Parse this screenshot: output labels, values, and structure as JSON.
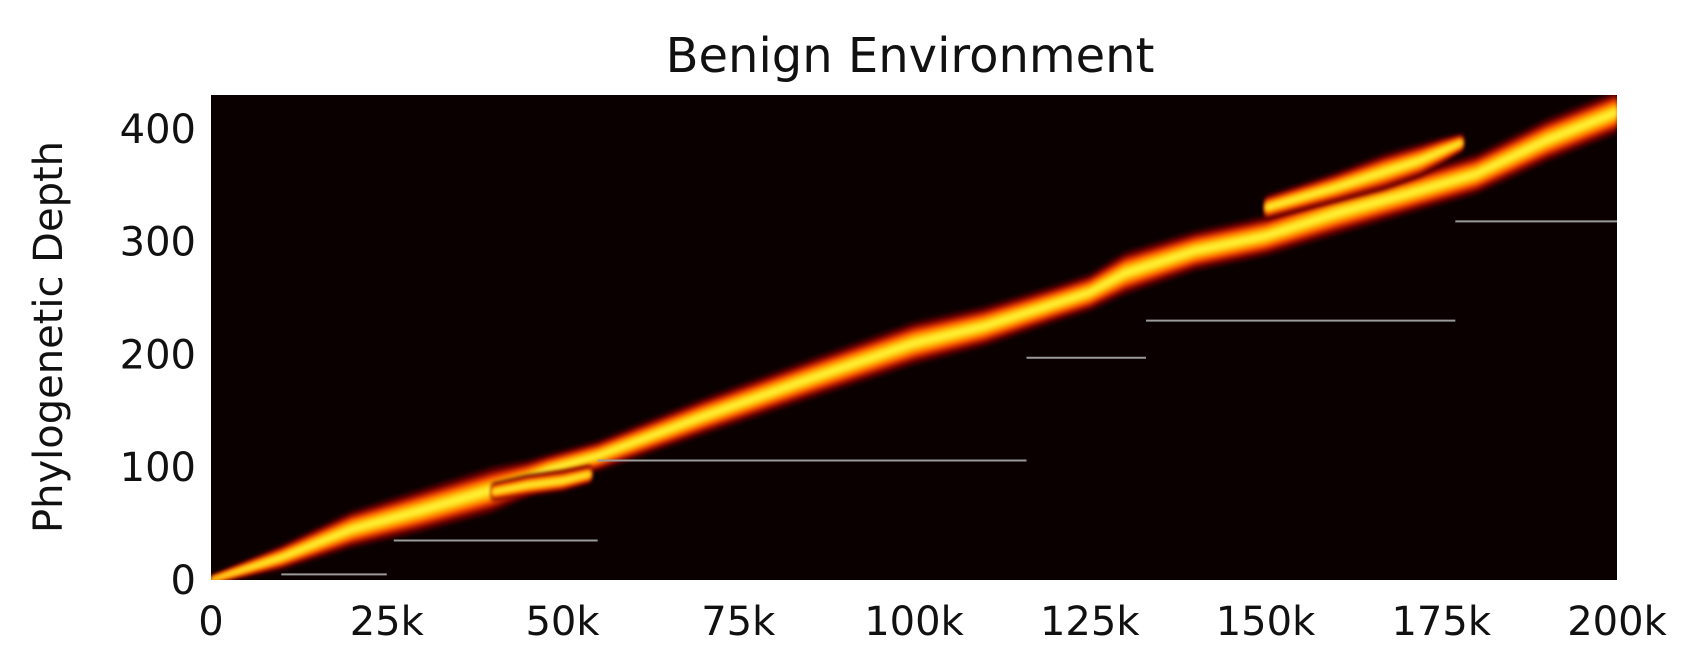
{
  "chart_data": {
    "type": "heatmap",
    "title": "Benign Environment",
    "xlabel": "",
    "ylabel": "Phylogenetic Depth",
    "xlim": [
      0,
      200000
    ],
    "ylim": [
      0,
      430
    ],
    "x_ticks": [
      {
        "value": 0,
        "label": "0"
      },
      {
        "value": 25000,
        "label": "25k"
      },
      {
        "value": 50000,
        "label": "50k"
      },
      {
        "value": 75000,
        "label": "75k"
      },
      {
        "value": 100000,
        "label": "100k"
      },
      {
        "value": 125000,
        "label": "125k"
      },
      {
        "value": 150000,
        "label": "150k"
      },
      {
        "value": 175000,
        "label": "175k"
      },
      {
        "value": 200000,
        "label": "200k"
      }
    ],
    "y_ticks": [
      {
        "value": 0,
        "label": "0"
      },
      {
        "value": 100,
        "label": "100"
      },
      {
        "value": 200,
        "label": "200"
      },
      {
        "value": 300,
        "label": "300"
      },
      {
        "value": 400,
        "label": "400"
      }
    ],
    "background_color": "#0a0000",
    "colormap": [
      "#5a0000",
      "#b81800",
      "#ff5a00",
      "#ffb000",
      "#ffee30"
    ],
    "density_bands": [
      {
        "x": [
          0,
          10000,
          20000,
          30000,
          40000,
          45000,
          48000,
          55000,
          70000,
          85000,
          100000,
          110000,
          120000,
          125000,
          130000,
          140000,
          150000,
          160000,
          170000,
          180000,
          190000,
          200000
        ],
        "y": [
          0,
          20,
          45,
          62,
          80,
          90,
          98,
          110,
          145,
          178,
          210,
          225,
          245,
          255,
          272,
          292,
          305,
          325,
          342,
          360,
          390,
          415
        ],
        "spread": [
          3,
          8,
          12,
          14,
          15,
          12,
          10,
          10,
          12,
          13,
          14,
          13,
          12,
          12,
          14,
          13,
          13,
          14,
          13,
          13,
          14,
          14
        ]
      },
      {
        "x": [
          40000,
          45000,
          50000,
          54000
        ],
        "y": [
          78,
          84,
          88,
          94
        ],
        "spread": [
          6,
          7,
          7,
          6
        ]
      },
      {
        "x": [
          150000,
          160000,
          167000,
          172000,
          175000,
          178000
        ],
        "y": [
          330,
          348,
          362,
          372,
          380,
          388
        ],
        "spread": [
          8,
          10,
          12,
          11,
          9,
          6
        ]
      }
    ],
    "lineage_segments": [
      {
        "x": [
          10000,
          25000
        ],
        "y": 5
      },
      {
        "x": [
          26000,
          55000
        ],
        "y": 35
      },
      {
        "x": [
          55000,
          116000
        ],
        "y": 106
      },
      {
        "x": [
          116000,
          133000
        ],
        "y": 197
      },
      {
        "x": [
          133000,
          177000
        ],
        "y": 230
      },
      {
        "x": [
          177000,
          200000
        ],
        "y": 318
      }
    ],
    "lineage_color": "#9a9a9a",
    "grid": false,
    "legend": "none"
  }
}
